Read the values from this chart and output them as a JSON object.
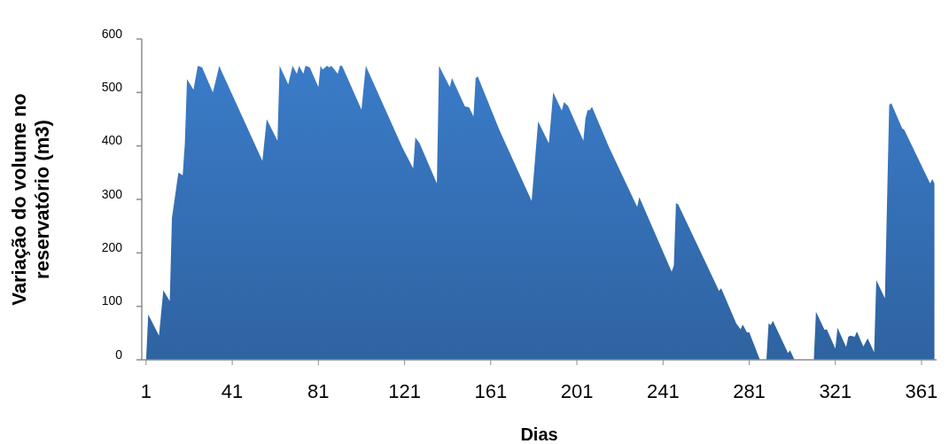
{
  "chart_data": {
    "type": "area",
    "xlabel": "Dias",
    "ylabel": "Variação do volume no reservatório (m3)",
    "xlim": [
      -1,
      368
    ],
    "xticks": [
      1,
      41,
      81,
      121,
      161,
      201,
      241,
      281,
      321,
      361
    ],
    "ylim": [
      0,
      600
    ],
    "yticks": [
      0,
      100,
      200,
      300,
      400,
      500,
      600
    ],
    "series": [
      {
        "color": "#3a7bc8",
        "x": [
          1,
          2,
          7,
          9,
          12,
          13,
          16,
          18,
          19,
          20,
          23,
          25,
          27,
          32,
          35,
          36,
          55,
          57,
          62,
          63,
          67,
          69,
          71,
          72,
          74,
          75,
          77,
          81,
          82,
          83,
          85,
          86,
          87,
          90,
          91,
          92,
          101,
          103,
          120,
          125,
          126,
          128,
          136,
          137,
          142,
          143,
          149,
          151,
          153,
          154,
          155,
          165,
          180,
          183,
          188,
          190,
          194,
          195,
          197,
          204,
          205,
          206,
          207,
          208,
          216,
          229,
          230,
          245,
          246,
          247,
          248,
          267,
          268,
          275,
          277,
          278,
          280,
          281,
          286,
          289,
          290,
          291,
          292,
          299,
          300,
          302,
          311,
          312,
          316,
          317,
          321,
          322,
          326,
          327,
          328,
          330,
          331,
          334,
          336,
          339,
          340,
          344,
          346,
          347,
          352,
          353,
          365,
          366,
          367
        ],
        "values": [
          0,
          85,
          45,
          130,
          110,
          265,
          350,
          345,
          405,
          525,
          505,
          550,
          547,
          500,
          550,
          540,
          372,
          450,
          410,
          550,
          515,
          550,
          535,
          550,
          535,
          550,
          547,
          510,
          550,
          543,
          550,
          547,
          550,
          535,
          550,
          550,
          468,
          550,
          397,
          358,
          416,
          405,
          330,
          550,
          510,
          527,
          474,
          472,
          455,
          527,
          530,
          430,
          297,
          446,
          405,
          500,
          466,
          482,
          474,
          410,
          452,
          467,
          467,
          473,
          397,
          286,
          304,
          165,
          176,
          293,
          291,
          129,
          134,
          68,
          57,
          66,
          51,
          52,
          0,
          0,
          68,
          65,
          73,
          13,
          18,
          0,
          0,
          90,
          56,
          57,
          21,
          60,
          24,
          43,
          45,
          43,
          53,
          25,
          40,
          14,
          149,
          115,
          477,
          480,
          433,
          430,
          330,
          338,
          330
        ]
      }
    ]
  }
}
